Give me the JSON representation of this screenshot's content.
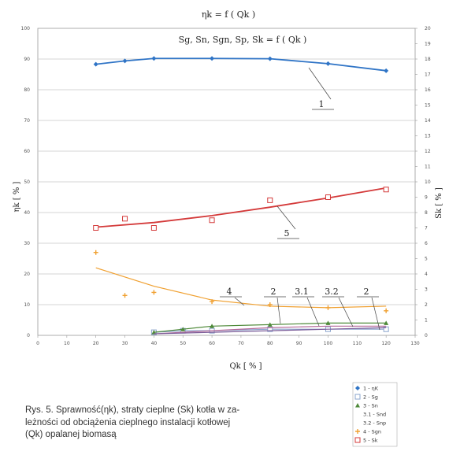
{
  "chart_data": {
    "type": "line",
    "title": "ηk = f ( Qk )",
    "subtitle": "Sg, Sn, Sgn, Sp, Sk = f ( Qk )",
    "xlabel": "Qk [ % ]",
    "ylabel_left": "ηk [ % ]",
    "ylabel_right": "Sk [ % ]",
    "xlim": [
      0,
      130
    ],
    "x_ticks": [
      0,
      10,
      20,
      30,
      40,
      50,
      60,
      70,
      80,
      90,
      100,
      110,
      120,
      130
    ],
    "ylim_left": [
      0,
      100
    ],
    "y_left_ticks": [
      0,
      10,
      20,
      30,
      40,
      50,
      60,
      70,
      80,
      90,
      100
    ],
    "ylim_right": [
      0,
      20
    ],
    "y_right_ticks": [
      0,
      1,
      2,
      3,
      4,
      5,
      6,
      7,
      8,
      9,
      10,
      11,
      12,
      13,
      14,
      15,
      16,
      17,
      18,
      19,
      20
    ],
    "grid": true,
    "legend_position": "bottom-right",
    "series": [
      {
        "name": "1 - ηK",
        "axis": "left",
        "color": "#2f74c6",
        "marker": "diamond",
        "x": [
          20,
          30,
          40,
          60,
          80,
          100,
          120
        ],
        "y": [
          88.3,
          89.4,
          90.2,
          90.2,
          90.1,
          88.5,
          86.2
        ]
      },
      {
        "name": "2 - Sg",
        "axis": "right",
        "color": "#8aa4cc",
        "marker": "square-open",
        "x": [
          40,
          50,
          60,
          80,
          100,
          120
        ],
        "y": [
          0.2,
          0.3,
          0.3,
          0.4,
          0.4,
          0.4
        ]
      },
      {
        "name": "3 - Sn",
        "axis": "right",
        "color": "#4f8a3a",
        "marker": "triangle",
        "x": [
          40,
          50,
          60,
          80,
          100,
          120
        ],
        "y": [
          0.2,
          0.4,
          0.6,
          0.7,
          0.8,
          0.8
        ]
      },
      {
        "name": "3.1 - Snd",
        "axis": "right",
        "color": "#b56a9a",
        "marker": "none",
        "x": [
          40,
          60,
          80,
          100,
          120
        ],
        "y": [
          0.1,
          0.3,
          0.5,
          0.6,
          0.6
        ]
      },
      {
        "name": "3.2 - Snp",
        "axis": "right",
        "color": "#7a5c99",
        "marker": "none",
        "x": [
          40,
          60,
          80,
          100,
          120
        ],
        "y": [
          0.1,
          0.2,
          0.3,
          0.4,
          0.5
        ]
      },
      {
        "name": "4 - Sgn",
        "axis": "right",
        "color": "#f0a030",
        "marker": "plus",
        "x": [
          20,
          30,
          40,
          60,
          80,
          100,
          120
        ],
        "y": [
          5.4,
          2.6,
          2.8,
          2.2,
          2.0,
          1.8,
          1.6
        ],
        "trend": {
          "x": [
            20,
            40,
            60,
            80,
            100,
            120
          ],
          "y": [
            4.4,
            3.2,
            2.3,
            1.9,
            1.8,
            1.9
          ]
        }
      },
      {
        "name": "5 - Sk",
        "axis": "right",
        "color": "#d43a3a",
        "marker": "square-open",
        "x": [
          20,
          30,
          40,
          60,
          80,
          100,
          120
        ],
        "y": [
          7.0,
          7.6,
          7.0,
          7.5,
          8.8,
          9.0,
          9.5
        ],
        "trend": {
          "x": [
            20,
            40,
            60,
            80,
            100,
            120
          ],
          "y": [
            7.05,
            7.35,
            7.8,
            8.35,
            8.95,
            9.6
          ]
        }
      }
    ],
    "annotations": [
      "1",
      "5",
      "4",
      "2",
      "3.1",
      "3.2",
      "2"
    ]
  },
  "legend": [
    {
      "label": "1 - ηK",
      "color": "#2f74c6",
      "marker": "diamond"
    },
    {
      "label": "2 - Sg",
      "color": "#8aa4cc",
      "marker": "square-open"
    },
    {
      "label": "3 - Sn",
      "color": "#4f8a3a",
      "marker": "triangle"
    },
    {
      "label": "3.1 - Snd",
      "color": "#b56a9a",
      "marker": "none"
    },
    {
      "label": "3.2 - Snp",
      "color": "#7a5c99",
      "marker": "none"
    },
    {
      "label": "4 - Sgn",
      "color": "#f0a030",
      "marker": "plus"
    },
    {
      "label": "5 - Sk",
      "color": "#d43a3a",
      "marker": "square-open"
    }
  ],
  "caption": {
    "line1": "Rys. 5. Sprawność(ηk), straty cieplne (Sk) kotła w za-",
    "line2": "leżności od obciążenia cieplnego instalacji kotłowej",
    "line3": "(Qk) opalanej biomasą"
  }
}
